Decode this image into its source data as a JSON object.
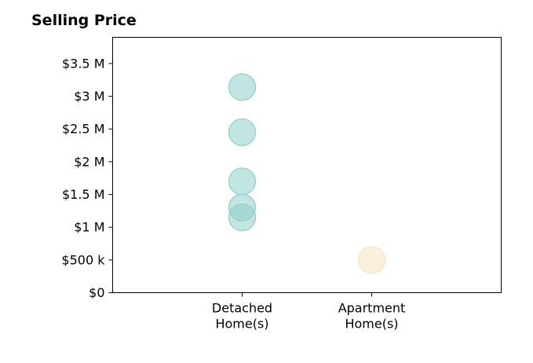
{
  "chart_data": {
    "type": "scatter",
    "title": "Selling Price",
    "xlabel": "",
    "ylabel": "",
    "categories": [
      "Detached\nHome(s)",
      "Apartment\nHome(s)"
    ],
    "ylim": [
      0,
      3900000
    ],
    "yticks": [
      {
        "value": 0,
        "label": "$0"
      },
      {
        "value": 500000,
        "label": "$500 k"
      },
      {
        "value": 1000000,
        "label": "$1 M"
      },
      {
        "value": 1500000,
        "label": "$1.5 M"
      },
      {
        "value": 2000000,
        "label": "$2 M"
      },
      {
        "value": 2500000,
        "label": "$2.5 M"
      },
      {
        "value": 3000000,
        "label": "$3 M"
      },
      {
        "value": 3500000,
        "label": "$3.5 M"
      }
    ],
    "grid": false,
    "legend": "none",
    "series": [
      {
        "category": "Detached\nHome(s)",
        "color": "#8ecfc8",
        "values": [
          3140000,
          2450000,
          1700000,
          1300000,
          1150000
        ]
      },
      {
        "category": "Apartment\nHome(s)",
        "color": "#f8e3bf",
        "values": [
          500000
        ]
      }
    ]
  }
}
